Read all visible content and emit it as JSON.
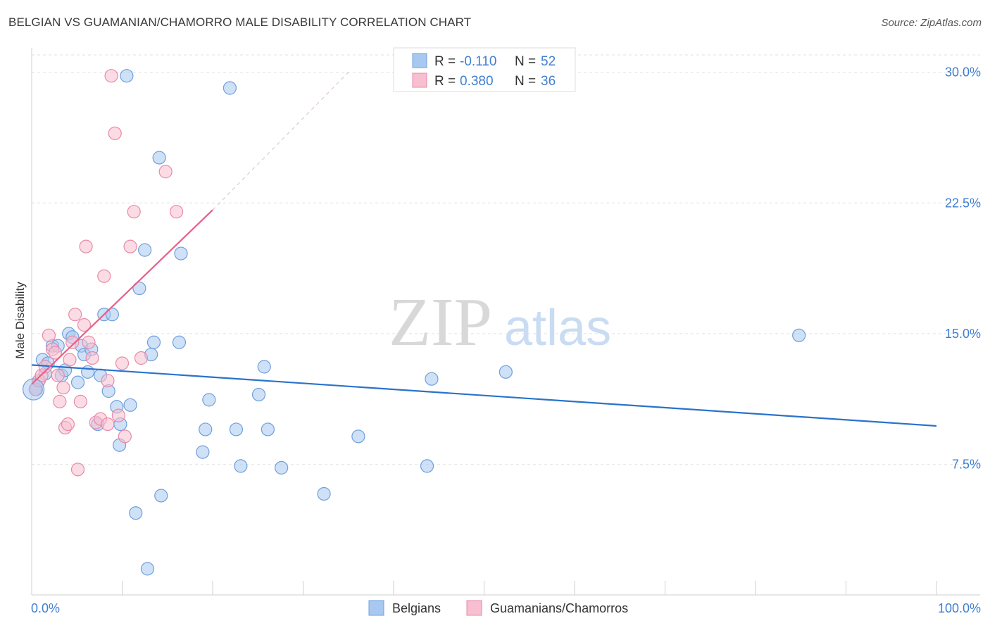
{
  "title": "BELGIAN VS GUAMANIAN/CHAMORRO MALE DISABILITY CORRELATION CHART",
  "source": "Source: ZipAtlas.com",
  "watermark": {
    "zip": "ZIP",
    "atlas": "atlas"
  },
  "colors": {
    "blue_fill": "#a8c8f0",
    "blue_stroke": "#6f9fdc",
    "blue_line": "#2a72cc",
    "pink_fill": "#f7bfd0",
    "pink_stroke": "#e88aa8",
    "pink_line": "#e8608a",
    "axis_text": "#3f7fd0",
    "grid": "#e2e2e2"
  },
  "legend_box": {
    "rows": [
      {
        "r_label": "R =",
        "r_value": "-0.110",
        "n_label": "N =",
        "n_value": "52"
      },
      {
        "r_label": "R =",
        "r_value": "0.380",
        "n_label": "N =",
        "n_value": "36"
      }
    ]
  },
  "chart_data": {
    "type": "scatter",
    "ylabel": "Male Disability",
    "xlabel": "",
    "xlim": [
      0,
      100
    ],
    "ylim": [
      0,
      31
    ],
    "x_tick_labels": [
      "0.0%",
      "100.0%"
    ],
    "y_ticks": [
      {
        "value": 7.5,
        "label": "7.5%"
      },
      {
        "value": 15.0,
        "label": "15.0%"
      },
      {
        "value": 22.5,
        "label": "22.5%"
      },
      {
        "value": 30.0,
        "label": "30.0%"
      }
    ],
    "legend": [
      {
        "name": "Belgians",
        "color": "blue"
      },
      {
        "name": "Guamanians/Chamorros",
        "color": "pink"
      }
    ],
    "series": [
      {
        "name": "Belgians",
        "color": "blue",
        "points": [
          [
            0.5,
            11.8
          ],
          [
            0.8,
            12.3
          ],
          [
            1.2,
            13.5
          ],
          [
            1.5,
            12.7
          ],
          [
            1.8,
            13.3
          ],
          [
            2.3,
            14.3
          ],
          [
            2.9,
            14.3
          ],
          [
            3.3,
            12.6
          ],
          [
            3.7,
            12.9
          ],
          [
            4.1,
            15.0
          ],
          [
            4.5,
            14.8
          ],
          [
            5.1,
            12.2
          ],
          [
            5.5,
            14.3
          ],
          [
            5.8,
            13.8
          ],
          [
            6.2,
            12.8
          ],
          [
            6.6,
            14.1
          ],
          [
            7.3,
            9.8
          ],
          [
            7.6,
            12.6
          ],
          [
            8.0,
            16.1
          ],
          [
            8.5,
            11.7
          ],
          [
            8.9,
            16.1
          ],
          [
            9.4,
            10.8
          ],
          [
            9.7,
            8.6
          ],
          [
            9.8,
            9.8
          ],
          [
            10.5,
            29.8
          ],
          [
            10.9,
            10.9
          ],
          [
            11.5,
            4.7
          ],
          [
            11.9,
            17.6
          ],
          [
            12.5,
            19.8
          ],
          [
            12.8,
            1.5
          ],
          [
            13.2,
            13.8
          ],
          [
            13.5,
            14.5
          ],
          [
            14.1,
            25.1
          ],
          [
            14.3,
            5.7
          ],
          [
            16.3,
            14.5
          ],
          [
            16.5,
            19.6
          ],
          [
            18.9,
            8.2
          ],
          [
            19.2,
            9.5
          ],
          [
            19.6,
            11.2
          ],
          [
            21.9,
            29.1
          ],
          [
            22.6,
            9.5
          ],
          [
            23.1,
            7.4
          ],
          [
            25.1,
            11.5
          ],
          [
            25.7,
            13.1
          ],
          [
            26.1,
            9.5
          ],
          [
            27.6,
            7.3
          ],
          [
            32.3,
            5.8
          ],
          [
            36.1,
            9.1
          ],
          [
            43.7,
            7.4
          ],
          [
            44.2,
            12.4
          ],
          [
            52.4,
            12.8
          ],
          [
            84.8,
            14.9
          ]
        ],
        "trend": {
          "x": [
            0,
            100
          ],
          "y": [
            13.2,
            9.7
          ]
        }
      },
      {
        "name": "Guamanians/Chamorros",
        "color": "pink",
        "points": [
          [
            0.4,
            11.8
          ],
          [
            0.8,
            12.3
          ],
          [
            1.1,
            12.6
          ],
          [
            1.5,
            13.1
          ],
          [
            1.9,
            14.9
          ],
          [
            2.3,
            14.1
          ],
          [
            2.6,
            13.9
          ],
          [
            2.9,
            12.6
          ],
          [
            3.1,
            11.1
          ],
          [
            3.5,
            11.9
          ],
          [
            3.7,
            9.6
          ],
          [
            4.0,
            9.8
          ],
          [
            4.2,
            13.5
          ],
          [
            4.5,
            14.5
          ],
          [
            4.8,
            16.1
          ],
          [
            5.1,
            7.2
          ],
          [
            5.4,
            11.1
          ],
          [
            5.8,
            15.5
          ],
          [
            6.0,
            20.0
          ],
          [
            6.3,
            14.5
          ],
          [
            6.7,
            13.6
          ],
          [
            7.1,
            9.9
          ],
          [
            7.6,
            10.1
          ],
          [
            8.0,
            18.3
          ],
          [
            8.4,
            12.3
          ],
          [
            8.8,
            29.8
          ],
          [
            9.2,
            26.5
          ],
          [
            9.6,
            10.3
          ],
          [
            10.0,
            13.3
          ],
          [
            10.3,
            9.1
          ],
          [
            10.9,
            20.0
          ],
          [
            11.3,
            22.0
          ],
          [
            12.1,
            13.6
          ],
          [
            14.8,
            24.3
          ],
          [
            16.0,
            22.0
          ],
          [
            8.4,
            9.8
          ]
        ],
        "trend": {
          "x": [
            0,
            20
          ],
          "y": [
            12.1,
            22.1
          ]
        },
        "trend_extension": {
          "x": [
            20,
            35
          ],
          "y": [
            22.1,
            30.0
          ]
        }
      }
    ]
  }
}
